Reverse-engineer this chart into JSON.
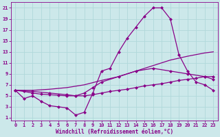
{
  "xlabel": "Windchill (Refroidissement éolien,°C)",
  "bg_color": "#cce8ea",
  "grid_color": "#b0d8da",
  "line_color": "#880088",
  "xlim": [
    -0.5,
    23.5
  ],
  "ylim": [
    0.5,
    22
  ],
  "xticks": [
    0,
    1,
    2,
    3,
    4,
    5,
    6,
    7,
    8,
    9,
    10,
    11,
    12,
    13,
    14,
    15,
    16,
    17,
    18,
    19,
    20,
    21,
    22,
    23
  ],
  "yticks": [
    1,
    3,
    5,
    7,
    9,
    11,
    13,
    15,
    17,
    19,
    21
  ],
  "line1_x": [
    0,
    1,
    2,
    3,
    4,
    5,
    6,
    7,
    8,
    9,
    10,
    11,
    12,
    13,
    14,
    15,
    16,
    17,
    18,
    19,
    20,
    21,
    22,
    23
  ],
  "line1_y": [
    6.0,
    4.5,
    5.0,
    4.0,
    3.2,
    3.0,
    2.8,
    1.5,
    2.0,
    5.5,
    9.5,
    10.0,
    13.0,
    15.5,
    17.5,
    19.5,
    21.0,
    21.0,
    19.0,
    12.5,
    9.5,
    7.5,
    7.0,
    6.0
  ],
  "line2_x": [
    0,
    1,
    2,
    3,
    4,
    5,
    6,
    7,
    8,
    9,
    10,
    11,
    12,
    13,
    14,
    15,
    16,
    17,
    18,
    19,
    20,
    21,
    22,
    23
  ],
  "line2_y": [
    6.0,
    5.8,
    5.5,
    5.3,
    5.2,
    5.1,
    5.0,
    5.0,
    5.0,
    5.2,
    5.5,
    5.8,
    6.0,
    6.2,
    6.5,
    6.8,
    7.0,
    7.2,
    7.5,
    7.8,
    8.0,
    8.2,
    8.5,
    8.5
  ],
  "line3_x": [
    0,
    2,
    4,
    6,
    8,
    10,
    12,
    14,
    16,
    18,
    20,
    22,
    23
  ],
  "line3_y": [
    6.0,
    6.0,
    6.2,
    6.5,
    7.0,
    7.8,
    8.5,
    9.5,
    10.5,
    11.5,
    12.2,
    12.8,
    13.0
  ],
  "line4_x": [
    0,
    2,
    4,
    6,
    7,
    8,
    9,
    10,
    12,
    14,
    16,
    18,
    20,
    22,
    23
  ],
  "line4_y": [
    6.0,
    5.8,
    5.5,
    5.2,
    5.0,
    5.5,
    6.5,
    7.5,
    8.5,
    9.5,
    10.0,
    9.5,
    9.0,
    8.5,
    8.0
  ],
  "marker": "D",
  "markersize": 2.0,
  "linewidth": 0.9,
  "tick_fontsize": 5.0,
  "xlabel_fontsize": 5.5
}
